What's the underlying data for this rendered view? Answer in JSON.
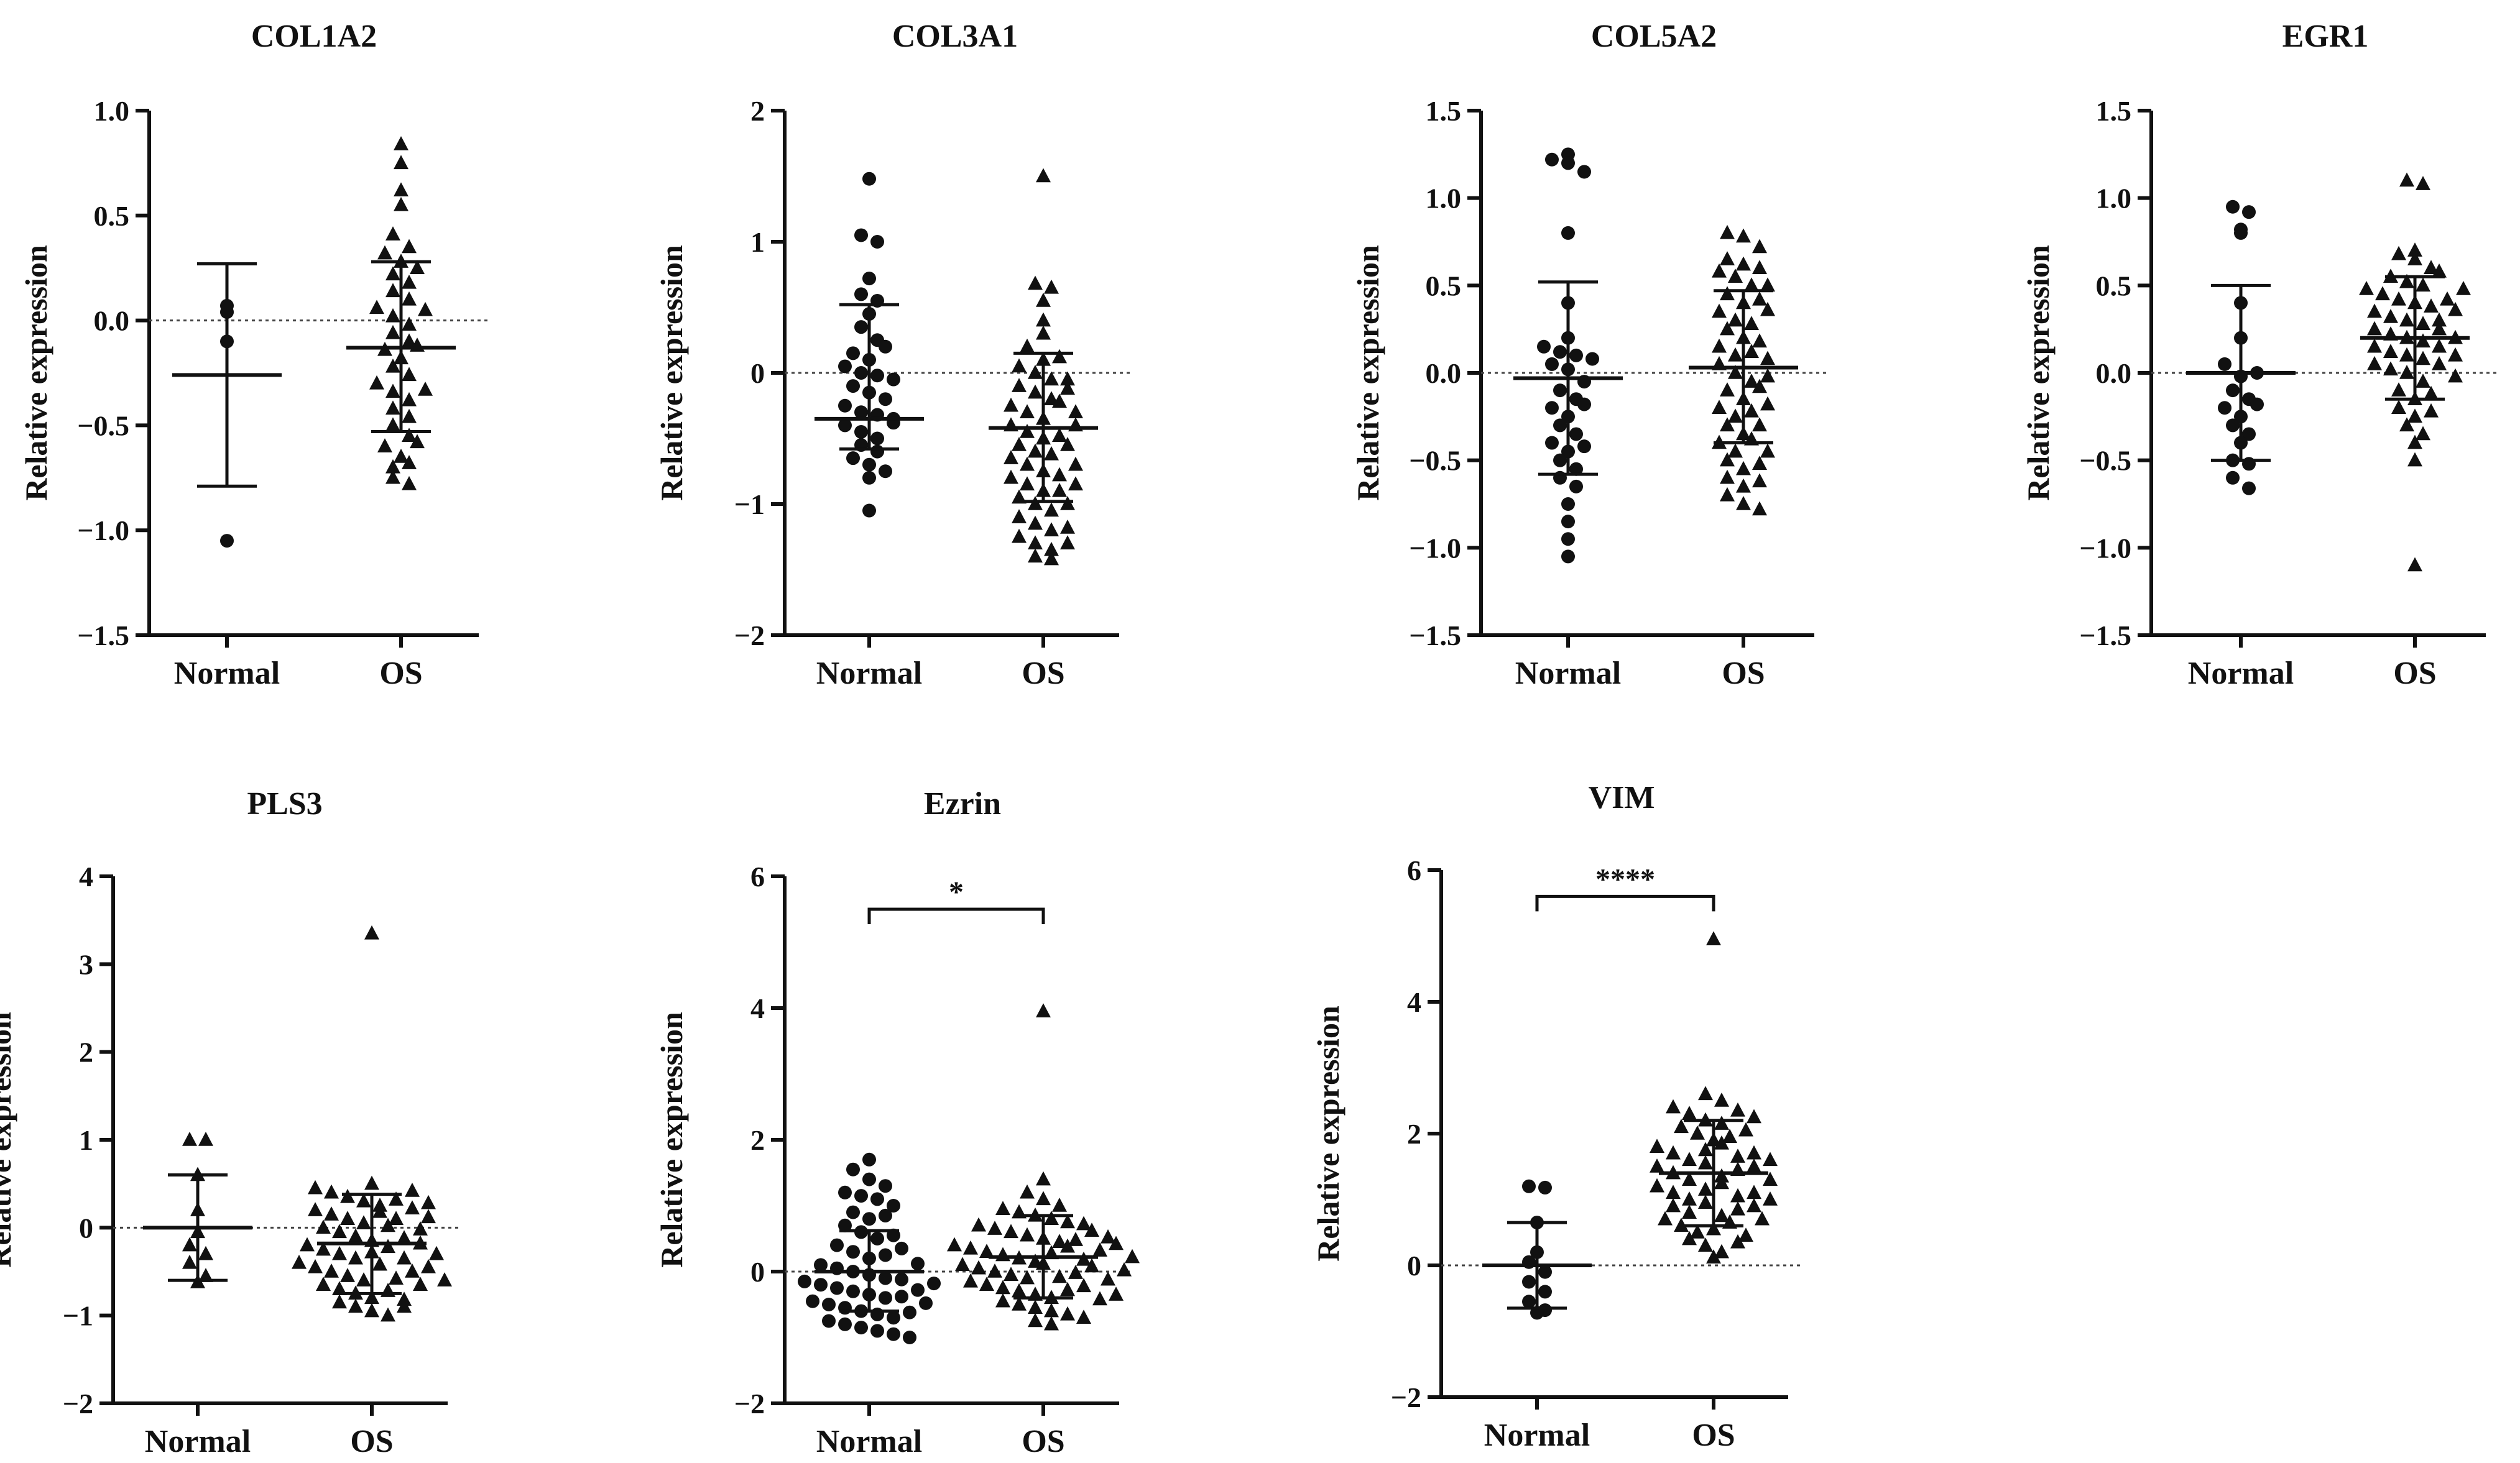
{
  "figure": {
    "description_colors": {
      "ink": "#111111",
      "zero_line": "#444444"
    }
  },
  "chart_data": [
    {
      "type": "scatter",
      "title": "COL1A2",
      "ylabel": "Relative expression",
      "categories": [
        "Normal",
        "OS"
      ],
      "ylim": [
        -1.5,
        1.0
      ],
      "yticks": [
        1.0,
        0.5,
        0.0,
        -0.5,
        -1.0,
        -1.5
      ],
      "ytick_labels": [
        "1.0",
        "0.5",
        "0.0",
        "−0.5",
        "−1.0",
        "−1.5"
      ],
      "series": [
        {
          "name": "Normal",
          "marker": "circle",
          "mean": -0.26,
          "sd_low": -0.79,
          "sd_high": 0.27,
          "values": [
            0.07,
            0.04,
            -0.1,
            -1.05
          ]
        },
        {
          "name": "OS",
          "marker": "triangle",
          "mean": -0.13,
          "sd_low": -0.53,
          "sd_high": 0.28,
          "values": [
            0.84,
            0.75,
            0.62,
            0.55,
            0.41,
            0.35,
            0.32,
            0.28,
            0.22,
            0.18,
            0.14,
            0.1,
            0.06,
            0.02,
            -0.02,
            -0.06,
            -0.1,
            -0.14,
            -0.18,
            -0.22,
            -0.26,
            -0.3,
            -0.34,
            -0.38,
            -0.42,
            -0.46,
            -0.5,
            -0.55,
            -0.6,
            -0.65,
            -0.7,
            -0.75,
            -0.78,
            0.05,
            -0.12,
            -0.33,
            -0.58,
            0.25,
            -0.68
          ]
        }
      ],
      "significance": null
    },
    {
      "type": "scatter",
      "title": "COL3A1",
      "ylabel": "Relative expression",
      "categories": [
        "Normal",
        "OS"
      ],
      "ylim": [
        -2,
        2
      ],
      "yticks": [
        2,
        1,
        0,
        -1,
        -2
      ],
      "ytick_labels": [
        "2",
        "1",
        "0",
        "−1",
        "−2"
      ],
      "series": [
        {
          "name": "Normal",
          "marker": "circle",
          "mean": -0.35,
          "sd_low": -0.58,
          "sd_high": 0.52,
          "values": [
            1.48,
            1.05,
            1.0,
            0.72,
            0.6,
            0.55,
            0.45,
            0.35,
            0.25,
            0.15,
            0.1,
            0.05,
            0.0,
            -0.02,
            -0.05,
            -0.1,
            -0.15,
            -0.2,
            -0.25,
            -0.3,
            -0.32,
            -0.35,
            -0.4,
            -0.45,
            -0.5,
            -0.55,
            -0.6,
            -0.65,
            -0.7,
            -0.75,
            -0.8,
            -1.05,
            0.2,
            -0.38
          ]
        },
        {
          "name": "OS",
          "marker": "triangle",
          "mean": -0.42,
          "sd_low": -0.98,
          "sd_high": 0.15,
          "values": [
            1.5,
            0.68,
            0.65,
            0.55,
            0.4,
            0.3,
            0.2,
            0.1,
            0.05,
            0.0,
            -0.05,
            -0.1,
            -0.15,
            -0.2,
            -0.25,
            -0.3,
            -0.35,
            -0.4,
            -0.45,
            -0.5,
            -0.55,
            -0.6,
            -0.65,
            -0.7,
            -0.75,
            -0.8,
            -0.85,
            -0.9,
            -0.95,
            -1.0,
            -1.05,
            -1.1,
            -1.15,
            -1.2,
            -1.25,
            -1.3,
            -1.35,
            -1.4,
            -1.42,
            -0.22,
            -0.48,
            -0.62,
            -0.78,
            -0.12,
            -0.9,
            -1.18,
            -0.3,
            -0.55,
            0.12,
            -0.7,
            -1.0,
            -1.3,
            -0.05,
            -0.4,
            -0.85
          ]
        }
      ],
      "significance": null
    },
    {
      "type": "scatter",
      "title": "COL5A2",
      "ylabel": "Relative expression",
      "categories": [
        "Normal",
        "OS"
      ],
      "ylim": [
        -1.5,
        1.5
      ],
      "yticks": [
        1.5,
        1.0,
        0.5,
        0.0,
        -0.5,
        -1.0,
        -1.5
      ],
      "ytick_labels": [
        "1.5",
        "1.0",
        "0.5",
        "0.0",
        "−0.5",
        "−1.0",
        "−1.5"
      ],
      "series": [
        {
          "name": "Normal",
          "marker": "circle",
          "mean": -0.03,
          "sd_low": -0.58,
          "sd_high": 0.52,
          "values": [
            1.25,
            1.22,
            1.2,
            1.15,
            0.8,
            0.4,
            0.2,
            0.15,
            0.12,
            0.1,
            0.05,
            0.02,
            -0.05,
            -0.1,
            -0.15,
            -0.2,
            -0.25,
            -0.3,
            -0.35,
            -0.4,
            -0.45,
            -0.5,
            -0.55,
            -0.6,
            -0.65,
            -0.75,
            -0.85,
            -0.95,
            -1.05,
            0.08,
            -0.18,
            -0.42
          ]
        },
        {
          "name": "OS",
          "marker": "triangle",
          "mean": 0.03,
          "sd_low": -0.4,
          "sd_high": 0.47,
          "values": [
            0.8,
            0.78,
            0.72,
            0.65,
            0.62,
            0.58,
            0.55,
            0.5,
            0.45,
            0.4,
            0.35,
            0.3,
            0.25,
            0.2,
            0.15,
            0.1,
            0.05,
            0.0,
            -0.05,
            -0.1,
            -0.15,
            -0.2,
            -0.25,
            -0.3,
            -0.35,
            -0.4,
            -0.45,
            -0.5,
            -0.55,
            -0.6,
            -0.65,
            -0.7,
            -0.75,
            -0.78,
            0.42,
            0.28,
            0.12,
            -0.08,
            -0.22,
            -0.38,
            -0.52,
            0.6,
            0.18,
            -0.3,
            -0.62,
            0.36,
            -0.02,
            -0.45,
            0.5,
            0.08,
            -0.18
          ]
        }
      ],
      "significance": null
    },
    {
      "type": "scatter",
      "title": "EGR1",
      "ylabel": "Relative expression",
      "categories": [
        "Normal",
        "OS"
      ],
      "ylim": [
        -1.5,
        1.5
      ],
      "yticks": [
        1.5,
        1.0,
        0.5,
        0.0,
        -0.5,
        -1.0,
        -1.5
      ],
      "ytick_labels": [
        "1.5",
        "1.0",
        "0.5",
        "0.0",
        "−0.5",
        "−1.0",
        "−1.5"
      ],
      "series": [
        {
          "name": "Normal",
          "marker": "circle",
          "mean": 0.0,
          "sd_low": -0.5,
          "sd_high": 0.5,
          "values": [
            0.95,
            0.92,
            0.82,
            0.8,
            0.4,
            0.2,
            0.05,
            -0.02,
            -0.1,
            -0.15,
            -0.2,
            -0.25,
            -0.3,
            -0.35,
            -0.4,
            -0.5,
            -0.52,
            -0.6,
            -0.66,
            0.0,
            -0.18
          ]
        },
        {
          "name": "OS",
          "marker": "triangle",
          "mean": 0.2,
          "sd_low": -0.15,
          "sd_high": 0.55,
          "values": [
            1.1,
            1.08,
            0.7,
            0.68,
            0.65,
            0.6,
            0.55,
            0.52,
            0.5,
            0.48,
            0.45,
            0.42,
            0.4,
            0.38,
            0.35,
            0.32,
            0.3,
            0.28,
            0.25,
            0.22,
            0.2,
            0.18,
            0.15,
            0.12,
            0.1,
            0.08,
            0.05,
            0.02,
            0.0,
            -0.05,
            -0.1,
            -0.15,
            -0.2,
            -0.25,
            -0.3,
            -0.35,
            -0.4,
            -0.5,
            -1.1,
            0.3,
            0.15,
            0.42,
            0.05,
            -0.12,
            0.58,
            0.25,
            0.1,
            -0.02,
            0.36,
            0.2,
            0.48,
            -0.22
          ]
        }
      ],
      "significance": null
    },
    {
      "type": "scatter",
      "title": "PLS3",
      "ylabel": "Relative expression",
      "categories": [
        "Normal",
        "OS"
      ],
      "ylim": [
        -2,
        4
      ],
      "yticks": [
        4,
        3,
        2,
        1,
        0,
        -1,
        -2
      ],
      "ytick_labels": [
        "4",
        "3",
        "2",
        "1",
        "0",
        "−1",
        "−2"
      ],
      "series": [
        {
          "name": "Normal",
          "marker": "triangle",
          "mean": 0.0,
          "sd_low": -0.6,
          "sd_high": 0.6,
          "values": [
            1.0,
            1.0,
            0.6,
            0.2,
            -0.05,
            -0.2,
            -0.3,
            -0.4,
            -0.55,
            -0.62
          ]
        },
        {
          "name": "OS",
          "marker": "triangle",
          "mean": -0.18,
          "sd_low": -0.75,
          "sd_high": 0.38,
          "values": [
            3.35,
            0.5,
            0.45,
            0.4,
            0.35,
            0.3,
            0.25,
            0.2,
            0.15,
            0.1,
            0.05,
            0.0,
            -0.05,
            -0.1,
            -0.15,
            -0.2,
            -0.25,
            -0.3,
            -0.35,
            -0.4,
            -0.45,
            -0.5,
            -0.55,
            -0.6,
            -0.65,
            -0.7,
            -0.75,
            -0.8,
            -0.85,
            -0.9,
            -0.95,
            -1.0,
            0.32,
            0.18,
            0.02,
            -0.12,
            -0.28,
            -0.42,
            -0.58,
            -0.72,
            0.42,
            0.1,
            -0.22,
            -0.5,
            -0.82,
            0.28,
            -0.02,
            -0.35,
            -0.65,
            0.22,
            -0.18,
            -0.45,
            -0.9,
            0.12,
            -0.3,
            -0.6
          ]
        }
      ],
      "significance": null
    },
    {
      "type": "scatter",
      "title": "Ezrin",
      "ylabel": "Relative expression",
      "categories": [
        "Normal",
        "OS"
      ],
      "ylim": [
        -2,
        6
      ],
      "yticks": [
        6,
        4,
        2,
        0,
        -2
      ],
      "ytick_labels": [
        "6",
        "4",
        "2",
        "0",
        "−2"
      ],
      "series": [
        {
          "name": "Normal",
          "marker": "circle",
          "mean": 0.0,
          "sd_low": -0.6,
          "sd_high": 0.62,
          "values": [
            1.7,
            1.55,
            1.4,
            1.3,
            1.2,
            1.15,
            1.1,
            1.0,
            0.9,
            0.8,
            0.7,
            0.6,
            0.5,
            0.4,
            0.3,
            0.2,
            0.1,
            0.05,
            0.0,
            -0.05,
            -0.1,
            -0.15,
            -0.2,
            -0.25,
            -0.3,
            -0.35,
            -0.4,
            -0.45,
            -0.5,
            -0.55,
            -0.6,
            -0.65,
            -0.7,
            -0.75,
            -0.8,
            -0.85,
            -0.9,
            -0.95,
            -1.0,
            0.25,
            -0.12,
            -0.38,
            0.55,
            -0.28,
            0.12,
            -0.62,
            0.35,
            -0.18,
            -0.48,
            0.85
          ]
        },
        {
          "name": "OS",
          "marker": "triangle",
          "mean": 0.22,
          "sd_low": -0.4,
          "sd_high": 0.85,
          "values": [
            3.95,
            1.4,
            1.2,
            1.1,
            1.0,
            0.95,
            0.9,
            0.85,
            0.8,
            0.75,
            0.7,
            0.65,
            0.6,
            0.55,
            0.5,
            0.45,
            0.4,
            0.35,
            0.3,
            0.25,
            0.2,
            0.15,
            0.1,
            0.05,
            0.0,
            -0.05,
            -0.1,
            -0.15,
            -0.2,
            -0.25,
            -0.3,
            -0.35,
            -0.4,
            -0.45,
            -0.5,
            -0.55,
            -0.6,
            -0.65,
            -0.7,
            -0.75,
            -0.8,
            0.48,
            0.28,
            0.12,
            -0.08,
            -0.28,
            0.62,
            0.38,
            0.18,
            -0.02,
            -0.22,
            -0.42,
            0.72,
            0.52,
            0.32,
            0.08,
            -0.12,
            -0.35,
            0.42,
            0.22,
            0.02
          ]
        }
      ],
      "significance": {
        "label": "*",
        "between": [
          "Normal",
          "OS"
        ],
        "y": 5.5
      }
    },
    {
      "type": "scatter",
      "title": "VIM",
      "ylabel": "Relative expression",
      "categories": [
        "Normal",
        "OS"
      ],
      "ylim": [
        -2,
        6
      ],
      "yticks": [
        6,
        4,
        2,
        0,
        -2
      ],
      "ytick_labels": [
        "6",
        "4",
        "2",
        "0",
        "−2"
      ],
      "series": [
        {
          "name": "Normal",
          "marker": "circle",
          "mean": 0.0,
          "sd_low": -0.65,
          "sd_high": 0.65,
          "values": [
            1.2,
            1.18,
            0.65,
            0.2,
            0.05,
            -0.1,
            -0.25,
            -0.4,
            -0.55,
            -0.68,
            -0.72
          ]
        },
        {
          "name": "OS",
          "marker": "triangle",
          "mean": 1.4,
          "sd_low": 0.6,
          "sd_high": 2.2,
          "values": [
            4.95,
            2.6,
            2.5,
            2.4,
            2.3,
            2.2,
            2.1,
            2.0,
            1.9,
            1.8,
            1.7,
            1.6,
            1.5,
            1.4,
            1.3,
            1.2,
            1.1,
            1.0,
            0.9,
            0.8,
            0.7,
            0.6,
            0.5,
            0.4,
            0.3,
            0.2,
            0.12,
            2.15,
            1.95,
            1.75,
            1.55,
            1.35,
            1.15,
            0.95,
            0.75,
            0.55,
            0.35,
            2.35,
            2.05,
            1.85,
            1.65,
            1.45,
            1.25,
            1.05,
            0.85,
            0.65,
            0.45,
            1.5,
            1.3,
            1.1,
            1.7,
            0.9,
            2.25,
            1.6,
            1.0,
            0.7
          ]
        }
      ],
      "significance": {
        "label": "****",
        "between": [
          "Normal",
          "OS"
        ],
        "y": 5.6
      }
    }
  ]
}
